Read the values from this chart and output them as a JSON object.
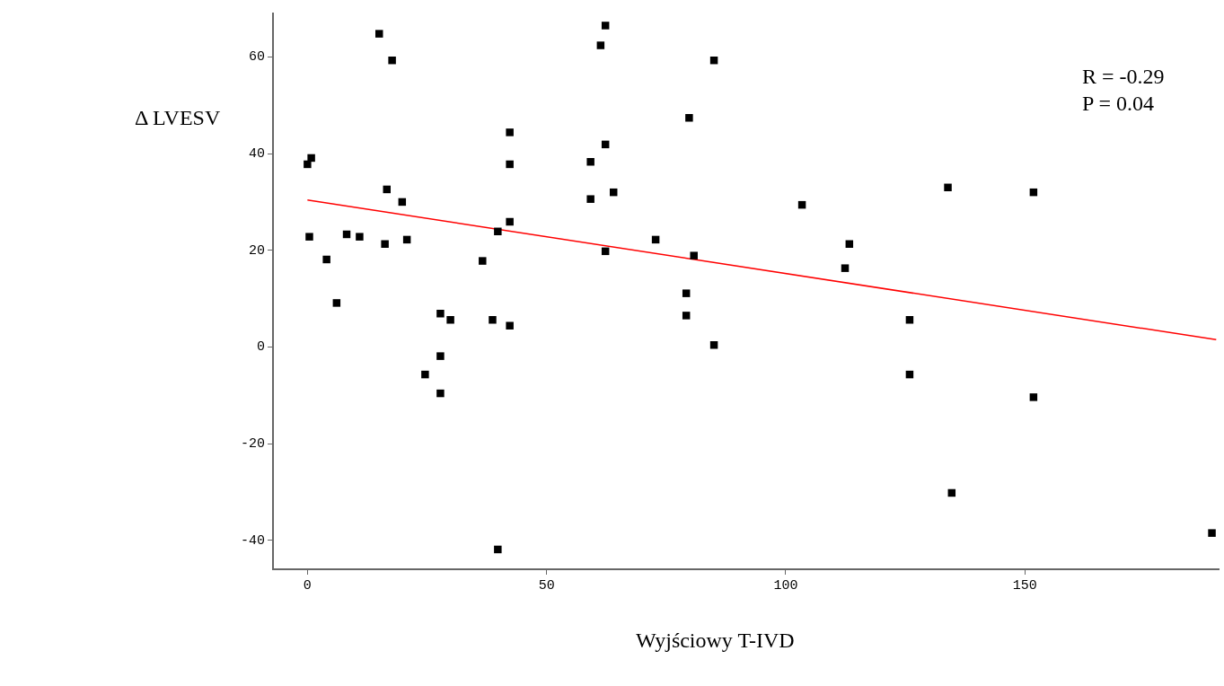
{
  "chart_data": {
    "type": "scatter",
    "xlabel": "Wyjściowy T-IVD",
    "ylabel": "Δ LVESV",
    "annotations": [
      "R = -0.29",
      "P = 0.04"
    ],
    "xlim": [
      -7.2,
      190.5
    ],
    "ylim": [
      -46,
      69
    ],
    "xticks": [
      0,
      50,
      100,
      150
    ],
    "yticks": [
      -40,
      -20,
      0,
      20,
      40,
      60
    ],
    "grid": false,
    "legend": false,
    "series": [
      {
        "type": "scatter",
        "color": "#000000",
        "marker": "square",
        "x": [
          0,
          0.8,
          0.4,
          4,
          6.1,
          8.2,
          10.9,
          15,
          16.6,
          16.2,
          17.7,
          19.8,
          20.8,
          24.6,
          27.8,
          27.8,
          27.8,
          29.9,
          36.6,
          38.7,
          39.8,
          39.8,
          42.3,
          42.3,
          42.3,
          42.3,
          59.2,
          59.2,
          61.3,
          62.3,
          62.3,
          62.3,
          64,
          72.8,
          79.2,
          79.2,
          79.8,
          80.8,
          85,
          85,
          103.4,
          112.4,
          113.3,
          125.9,
          125.9,
          133.9,
          134.7,
          151.8,
          151.8,
          189.1
        ],
        "values": [
          37.8,
          39.1,
          22.8,
          18.1,
          9.1,
          23.3,
          22.8,
          64.8,
          32.6,
          21.3,
          59.3,
          30,
          22.2,
          -5.7,
          6.9,
          -1.9,
          -9.6,
          5.6,
          17.8,
          5.6,
          23.9,
          -41.9,
          44.4,
          37.8,
          25.9,
          4.4,
          38.3,
          30.6,
          62.4,
          66.5,
          41.9,
          19.8,
          32,
          22.2,
          11.1,
          6.5,
          47.4,
          18.9,
          59.3,
          0.4,
          29.4,
          16.3,
          21.3,
          5.6,
          -5.7,
          33,
          -30.2,
          32,
          -10.4,
          -38.5
        ]
      },
      {
        "type": "line",
        "color": "#ff0000",
        "x": [
          0,
          190
        ],
        "values": [
          30.4,
          1.5
        ]
      }
    ]
  }
}
